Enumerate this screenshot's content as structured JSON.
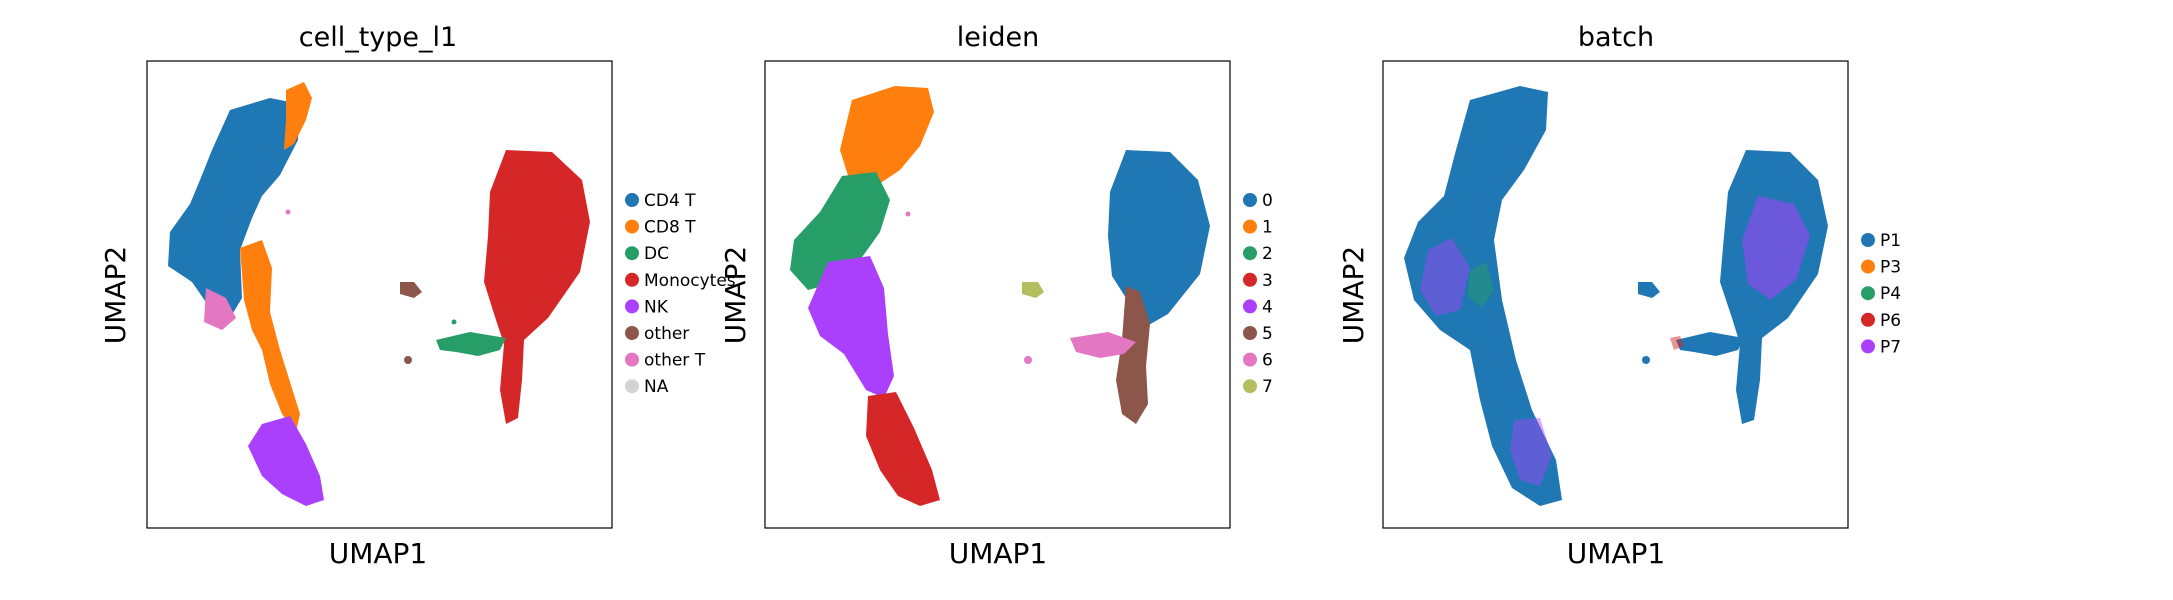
{
  "chart_data": [
    {
      "type": "scatter",
      "title": "cell_type_l1",
      "xlabel": "UMAP1",
      "ylabel": "UMAP2",
      "grid": false,
      "legend_placement": "right",
      "legend": [
        {
          "name": "CD4 T",
          "color": "#1f77b4"
        },
        {
          "name": "CD8 T",
          "color": "#ff7f0e"
        },
        {
          "name": "DC",
          "color": "#279e68"
        },
        {
          "name": "Monocytes",
          "color": "#d62728"
        },
        {
          "name": "NK",
          "color": "#aa40fc"
        },
        {
          "name": "other",
          "color": "#8c564b"
        },
        {
          "name": "other T",
          "color": "#e377c2"
        },
        {
          "name": "NA",
          "color": "#d3d3d3"
        }
      ]
    },
    {
      "type": "scatter",
      "title": "leiden",
      "xlabel": "UMAP1",
      "ylabel": "UMAP2",
      "grid": false,
      "legend_placement": "right",
      "legend": [
        {
          "name": "0",
          "color": "#1f77b4"
        },
        {
          "name": "1",
          "color": "#ff7f0e"
        },
        {
          "name": "2",
          "color": "#279e68"
        },
        {
          "name": "3",
          "color": "#d62728"
        },
        {
          "name": "4",
          "color": "#aa40fc"
        },
        {
          "name": "5",
          "color": "#8c564b"
        },
        {
          "name": "6",
          "color": "#e377c2"
        },
        {
          "name": "7",
          "color": "#b5bd61"
        }
      ]
    },
    {
      "type": "scatter",
      "title": "batch",
      "xlabel": "UMAP1",
      "ylabel": "UMAP2",
      "grid": false,
      "legend_placement": "right",
      "legend": [
        {
          "name": "P1",
          "color": "#1f77b4"
        },
        {
          "name": "P3",
          "color": "#ff7f0e"
        },
        {
          "name": "P4",
          "color": "#279e68"
        },
        {
          "name": "P6",
          "color": "#d62728"
        },
        {
          "name": "P7",
          "color": "#aa40fc"
        }
      ]
    }
  ]
}
